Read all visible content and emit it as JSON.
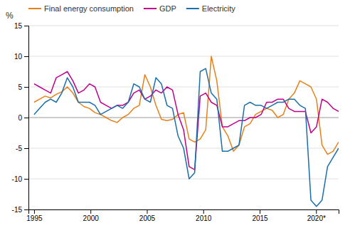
{
  "chart_data": {
    "type": "line",
    "y_label": "%",
    "x": [
      1995,
      1995.490909,
      1995.981818,
      1996.472727,
      1996.963636,
      1997.454545,
      1997.945455,
      1998.436364,
      1998.927273,
      1999.418182,
      1999.909091,
      2000.4,
      2000.890909,
      2001.381818,
      2001.872727,
      2002.363636,
      2002.854545,
      2003.345455,
      2003.836364,
      2004.327273,
      2004.818182,
      2005.309091,
      2005.8,
      2006.290909,
      2006.781818,
      2007.272727,
      2007.763636,
      2008.254545,
      2008.745455,
      2009.236364,
      2009.727273,
      2010.218182,
      2010.709091,
      2011.2,
      2011.690909,
      2012.181818,
      2012.672727,
      2013.163636,
      2013.654545,
      2014.145455,
      2014.636364,
      2015.127273,
      2015.618182,
      2016.109091,
      2016.6,
      2017.090909,
      2017.581818,
      2018.072727,
      2018.563636,
      2019.054545,
      2019.545455,
      2020.036364,
      2020.527273,
      2021.018182,
      2021.509091,
      2022
    ],
    "series": [
      {
        "name": "Final energy consumption",
        "color": "#E8801A",
        "values": [
          2.5,
          3.0,
          3.5,
          3.2,
          3.8,
          4.2,
          5.0,
          4.0,
          2.5,
          1.8,
          1.5,
          0.8,
          0.5,
          0.0,
          -0.5,
          -0.8,
          0.0,
          0.5,
          1.5,
          2.0,
          7.0,
          5.0,
          2.0,
          -0.3,
          -0.5,
          -0.3,
          0.5,
          0.8,
          -3.5,
          -4.0,
          -3.5,
          -2.0,
          10.0,
          6.0,
          -1.5,
          -3.0,
          -5.5,
          -4.5,
          -1.5,
          -1.0,
          0.5,
          1.0,
          1.5,
          1.2,
          0.0,
          0.5,
          3.0,
          4.0,
          6.0,
          5.5,
          5.0,
          3.0,
          -4.5,
          -6.0,
          -5.5,
          -4.0
        ]
      },
      {
        "name": "GDP",
        "color": "#C0008C",
        "values": [
          5.5,
          5.0,
          4.5,
          4.0,
          6.5,
          7.0,
          7.5,
          6.0,
          4.0,
          4.5,
          5.5,
          5.0,
          2.5,
          2.0,
          1.5,
          2.0,
          2.0,
          2.5,
          4.0,
          4.5,
          3.0,
          3.5,
          4.5,
          4.0,
          5.0,
          4.5,
          0.5,
          -2.0,
          -8.0,
          -8.5,
          3.5,
          4.0,
          2.5,
          2.0,
          -1.5,
          -1.5,
          -1.0,
          -0.5,
          -0.5,
          0.0,
          0.0,
          0.5,
          2.5,
          2.5,
          3.0,
          3.0,
          1.5,
          1.0,
          1.0,
          1.0,
          -2.5,
          -1.5,
          3.0,
          2.5,
          1.5,
          1.0
        ]
      },
      {
        "name": "Electricity",
        "color": "#1A6FAA",
        "values": [
          0.5,
          1.5,
          2.5,
          3.0,
          2.5,
          4.0,
          6.5,
          5.0,
          2.5,
          2.5,
          2.5,
          2.0,
          0.5,
          1.0,
          1.5,
          2.0,
          1.5,
          2.5,
          5.5,
          5.0,
          3.0,
          2.5,
          6.5,
          5.5,
          2.0,
          1.5,
          -3.0,
          -5.0,
          -10.0,
          -9.0,
          7.5,
          8.0,
          4.0,
          3.0,
          -5.5,
          -5.5,
          -5.0,
          -4.5,
          2.0,
          2.5,
          2.0,
          2.0,
          1.5,
          2.0,
          2.5,
          2.5,
          3.0,
          3.0,
          2.0,
          1.5,
          -13.5,
          -14.5,
          -13.5,
          -8.0,
          -6.5,
          -5.0
        ]
      }
    ],
    "xlim": [
      1994.5,
      2022.0
    ],
    "xticks": [
      1995,
      2000,
      2005,
      2010,
      2015,
      {
        "value": 2020,
        "label": "2020*"
      }
    ],
    "ylim": [
      -15,
      15
    ],
    "yticks": [
      -15,
      -10,
      -5,
      0,
      5,
      10,
      15
    ],
    "grid": "y",
    "legend": "upper-left"
  }
}
